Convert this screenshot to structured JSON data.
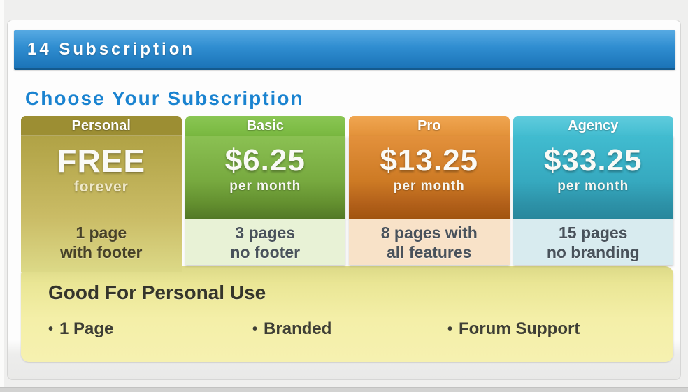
{
  "window": {
    "title": "14 Subscription"
  },
  "section": {
    "title": "Choose Your Subscription"
  },
  "plans": [
    {
      "name": "Personal",
      "price": "FREE",
      "period": "forever",
      "desc_line1": "1 page",
      "desc_line2": "with footer",
      "accent_color": "#b0a245",
      "selected": true
    },
    {
      "name": "Basic",
      "price": "$6.25",
      "period": "per month",
      "desc_line1": "3 pages",
      "desc_line2": "no footer",
      "accent_color": "#7db544",
      "selected": false
    },
    {
      "name": "Pro",
      "price": "$13.25",
      "period": "per month",
      "desc_line1": "8 pages with",
      "desc_line2": "all features",
      "accent_color": "#d8842f",
      "selected": false
    },
    {
      "name": "Agency",
      "price": "$33.25",
      "period": "per month",
      "desc_line1": "15 pages",
      "desc_line2": "no branding",
      "accent_color": "#3bb5c9",
      "selected": false
    }
  ],
  "detail_panel": {
    "title": "Good For Personal Use",
    "bullet": "•",
    "features": [
      "1 Page",
      "Branded",
      "Forum Support"
    ]
  },
  "colors": {
    "title_bar_blue_top": "#57aae3",
    "title_bar_blue_bottom": "#1b73b7",
    "section_title_blue": "#1a83d0",
    "panel_yellow": "#f4efa8",
    "page_background": "#efefee"
  }
}
